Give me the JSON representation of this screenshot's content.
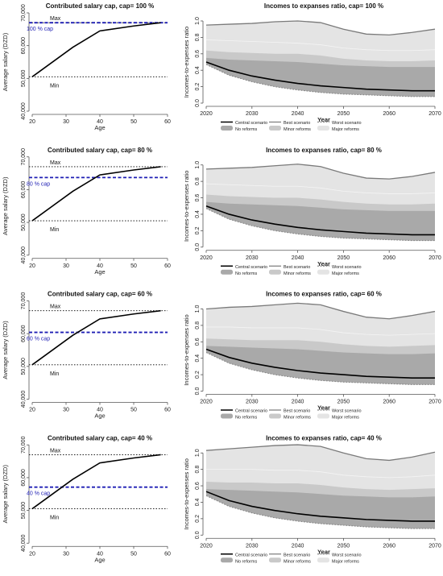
{
  "colors": {
    "cap_line": "#1f1fb4",
    "bound_line": "#000000",
    "curve": "#000000",
    "band_major": "#e4e4e4",
    "band_minor": "#c9c9c9",
    "band_none": "#a9a9a9",
    "best_line": "#7a7a7a",
    "worst_line": "#8a8a8a"
  },
  "chart_data": [
    {
      "type": "line",
      "title": "Contributed salary cap, cap= 100 %",
      "xlabel": "Age",
      "ylabel": "Average salary (DZD)",
      "xlim": [
        20,
        60
      ],
      "ylim": [
        40000,
        70000
      ],
      "xticks": [
        "20",
        "30",
        "40",
        "50",
        "60"
      ],
      "yticks": [
        "40,000",
        "50,000",
        "60,000",
        "70,000"
      ],
      "series": [
        {
          "x": [
            20,
            32,
            40,
            50,
            58
          ],
          "values": [
            50500,
            59500,
            64500,
            66000,
            67000
          ]
        }
      ],
      "max_label": "Max",
      "max_value": 67000,
      "min_label": "Min",
      "min_value": 50500,
      "cap_label": "100 % cap",
      "cap_value": 67000
    },
    {
      "type": "area",
      "title": "Incomes to expanses ratio, cap= 100 %",
      "xlabel": "Year",
      "ylabel": "Incomes-to-expenses ratio",
      "xlim": [
        2020,
        2070
      ],
      "ylim": [
        0,
        1.0
      ],
      "xticks": [
        "2020",
        "2030",
        "2040",
        "2050",
        "2060",
        "2070"
      ],
      "yticks": [
        "0.0",
        "0.2",
        "0.4",
        "0.6",
        "0.8",
        "1.0"
      ],
      "x": [
        2020,
        2025,
        2030,
        2035,
        2040,
        2045,
        2050,
        2055,
        2060,
        2065,
        2070
      ],
      "best": [
        0.95,
        0.96,
        0.97,
        0.99,
        1.0,
        0.98,
        0.9,
        0.84,
        0.83,
        0.86,
        0.9
      ],
      "major_upper": [
        0.77,
        0.76,
        0.75,
        0.74,
        0.73,
        0.71,
        0.67,
        0.65,
        0.64,
        0.64,
        0.65
      ],
      "minor_upper": [
        0.64,
        0.62,
        0.61,
        0.6,
        0.6,
        0.58,
        0.54,
        0.52,
        0.51,
        0.51,
        0.52
      ],
      "none_upper": [
        0.55,
        0.53,
        0.52,
        0.51,
        0.5,
        0.48,
        0.46,
        0.45,
        0.44,
        0.44,
        0.44
      ],
      "central": [
        0.5,
        0.4,
        0.33,
        0.28,
        0.24,
        0.21,
        0.19,
        0.17,
        0.16,
        0.15,
        0.15
      ],
      "worst": [
        0.47,
        0.34,
        0.26,
        0.2,
        0.16,
        0.13,
        0.11,
        0.1,
        0.09,
        0.08,
        0.08
      ],
      "legend": [
        {
          "label": "Central scenario",
          "style": "central"
        },
        {
          "label": "Best scenario",
          "style": "best"
        },
        {
          "label": "Worst scenario",
          "style": "worst"
        },
        {
          "label": "No reforms",
          "style": "band_none"
        },
        {
          "label": "Minor reforms",
          "style": "band_minor"
        },
        {
          "label": "Major reforms",
          "style": "band_major"
        }
      ]
    },
    {
      "type": "line",
      "title": "Contributed salary cap, cap= 80 %",
      "xlabel": "Age",
      "ylabel": "Average salary (DZD)",
      "xlim": [
        20,
        60
      ],
      "ylim": [
        40000,
        70000
      ],
      "xticks": [
        "20",
        "30",
        "40",
        "50",
        "60"
      ],
      "yticks": [
        "40,000",
        "50,000",
        "60,000",
        "70,000"
      ],
      "series": [
        {
          "x": [
            20,
            32,
            40,
            50,
            58
          ],
          "values": [
            50500,
            59500,
            64500,
            66000,
            67000
          ]
        }
      ],
      "max_label": "Max",
      "max_value": 67000,
      "min_label": "Min",
      "min_value": 50500,
      "cap_label": "80 % cap",
      "cap_value": 63700
    },
    {
      "type": "area",
      "title": "Incomes to expanses ratio, cap= 80 %",
      "xlabel": "Year",
      "ylabel": "Incomes-to-expenses ratio",
      "xlim": [
        2020,
        2070
      ],
      "ylim": [
        0,
        1.0
      ],
      "xticks": [
        "2020",
        "2030",
        "2040",
        "2050",
        "2060",
        "2070"
      ],
      "yticks": [
        "0.0",
        "0.2",
        "0.4",
        "0.6",
        "0.8",
        "1.0"
      ],
      "x": [
        2020,
        2025,
        2030,
        2035,
        2040,
        2045,
        2050,
        2055,
        2060,
        2065,
        2070
      ],
      "best": [
        0.95,
        0.96,
        0.97,
        0.99,
        1.01,
        0.98,
        0.9,
        0.84,
        0.83,
        0.86,
        0.91
      ],
      "major_upper": [
        0.77,
        0.76,
        0.75,
        0.74,
        0.74,
        0.72,
        0.68,
        0.66,
        0.65,
        0.65,
        0.66
      ],
      "minor_upper": [
        0.64,
        0.62,
        0.61,
        0.6,
        0.6,
        0.58,
        0.55,
        0.53,
        0.52,
        0.52,
        0.53
      ],
      "none_upper": [
        0.55,
        0.53,
        0.52,
        0.51,
        0.5,
        0.48,
        0.46,
        0.45,
        0.44,
        0.44,
        0.44
      ],
      "central": [
        0.5,
        0.4,
        0.33,
        0.28,
        0.24,
        0.21,
        0.19,
        0.17,
        0.16,
        0.15,
        0.15
      ],
      "worst": [
        0.47,
        0.34,
        0.26,
        0.2,
        0.16,
        0.13,
        0.11,
        0.1,
        0.09,
        0.08,
        0.08
      ],
      "legend": [
        {
          "label": "Central scenario",
          "style": "central"
        },
        {
          "label": "Best scenario",
          "style": "best"
        },
        {
          "label": "Worst scenario",
          "style": "worst"
        },
        {
          "label": "No reforms",
          "style": "band_none"
        },
        {
          "label": "Minor reforms",
          "style": "band_minor"
        },
        {
          "label": "Major reforms",
          "style": "band_major"
        }
      ]
    },
    {
      "type": "line",
      "title": "Contributed salary cap, cap= 60 %",
      "xlabel": "Age",
      "ylabel": "Average salary (DZD)",
      "xlim": [
        20,
        60
      ],
      "ylim": [
        40000,
        70000
      ],
      "xticks": [
        "20",
        "30",
        "40",
        "50",
        "60"
      ],
      "yticks": [
        "40,000",
        "50,000",
        "60,000",
        "70,000"
      ],
      "series": [
        {
          "x": [
            20,
            32,
            40,
            50,
            58
          ],
          "values": [
            50500,
            59500,
            64500,
            66000,
            67000
          ]
        }
      ],
      "max_label": "Max",
      "max_value": 67000,
      "min_label": "Min",
      "min_value": 50500,
      "cap_label": "60 % cap",
      "cap_value": 60400
    },
    {
      "type": "area",
      "title": "Incomes to expanses ratio, cap= 60 %",
      "xlabel": "Year",
      "ylabel": "Incomes-to-expenses ratio",
      "xlim": [
        2020,
        2070
      ],
      "ylim": [
        0,
        1.0
      ],
      "xticks": [
        "2020",
        "2030",
        "2040",
        "2050",
        "2060",
        "2070"
      ],
      "yticks": [
        "0.0",
        "0.2",
        "0.4",
        "0.6",
        "0.8",
        "1.0"
      ],
      "x": [
        2020,
        2025,
        2030,
        2035,
        2040,
        2045,
        2050,
        2055,
        2060,
        2065,
        2070
      ],
      "best": [
        1.0,
        1.02,
        1.03,
        1.05,
        1.07,
        1.05,
        0.97,
        0.9,
        0.88,
        0.92,
        0.97
      ],
      "major_upper": [
        0.78,
        0.78,
        0.77,
        0.77,
        0.77,
        0.75,
        0.71,
        0.69,
        0.68,
        0.69,
        0.7
      ],
      "minor_upper": [
        0.64,
        0.63,
        0.62,
        0.62,
        0.62,
        0.6,
        0.57,
        0.55,
        0.54,
        0.55,
        0.56
      ],
      "none_upper": [
        0.55,
        0.54,
        0.53,
        0.52,
        0.51,
        0.49,
        0.47,
        0.46,
        0.45,
        0.45,
        0.46
      ],
      "central": [
        0.51,
        0.41,
        0.34,
        0.29,
        0.25,
        0.22,
        0.2,
        0.18,
        0.17,
        0.16,
        0.16
      ],
      "worst": [
        0.47,
        0.34,
        0.26,
        0.2,
        0.16,
        0.13,
        0.11,
        0.1,
        0.09,
        0.08,
        0.08
      ],
      "legend": [
        {
          "label": "Central scenario",
          "style": "central"
        },
        {
          "label": "Best scenario",
          "style": "best"
        },
        {
          "label": "Worst scenario",
          "style": "worst"
        },
        {
          "label": "No reforms",
          "style": "band_none"
        },
        {
          "label": "Minor reforms",
          "style": "band_minor"
        },
        {
          "label": "Major reforms",
          "style": "band_major"
        }
      ]
    },
    {
      "type": "line",
      "title": "Contributed salary cap, cap= 40 %",
      "xlabel": "Age",
      "ylabel": "Average salary (DZD)",
      "xlim": [
        20,
        60
      ],
      "ylim": [
        40000,
        70000
      ],
      "xticks": [
        "20",
        "30",
        "40",
        "50",
        "60"
      ],
      "yticks": [
        "40,000",
        "50,000",
        "60,000",
        "70,000"
      ],
      "series": [
        {
          "x": [
            20,
            32,
            40,
            50,
            58
          ],
          "values": [
            50500,
            59500,
            64500,
            66000,
            67000
          ]
        }
      ],
      "max_label": "Max",
      "max_value": 67000,
      "min_label": "Min",
      "min_value": 50500,
      "cap_label": "40 % cap",
      "cap_value": 57100
    },
    {
      "type": "area",
      "title": "Incomes to expanses ratio, cap= 40 %",
      "xlabel": "Year",
      "ylabel": "Incomes-to-expenses ratio",
      "xlim": [
        2020,
        2070
      ],
      "ylim": [
        0,
        1.0
      ],
      "xticks": [
        "2020",
        "2030",
        "2040",
        "2050",
        "2060",
        "2070"
      ],
      "yticks": [
        "0.0",
        "0.2",
        "0.4",
        "0.6",
        "0.8",
        "1.0"
      ],
      "x": [
        2020,
        2025,
        2030,
        2035,
        2040,
        2045,
        2050,
        2055,
        2060,
        2065,
        2070
      ],
      "best": [
        1.03,
        1.05,
        1.07,
        1.09,
        1.1,
        1.08,
        1.0,
        0.93,
        0.91,
        0.95,
        1.01
      ],
      "major_upper": [
        0.8,
        0.8,
        0.8,
        0.79,
        0.79,
        0.77,
        0.73,
        0.71,
        0.7,
        0.71,
        0.73
      ],
      "minor_upper": [
        0.65,
        0.64,
        0.64,
        0.63,
        0.63,
        0.61,
        0.58,
        0.56,
        0.55,
        0.56,
        0.57
      ],
      "none_upper": [
        0.56,
        0.55,
        0.54,
        0.53,
        0.52,
        0.5,
        0.48,
        0.47,
        0.46,
        0.46,
        0.47
      ],
      "central": [
        0.53,
        0.42,
        0.35,
        0.3,
        0.26,
        0.23,
        0.21,
        0.19,
        0.18,
        0.17,
        0.17
      ],
      "worst": [
        0.48,
        0.35,
        0.27,
        0.21,
        0.17,
        0.14,
        0.12,
        0.1,
        0.09,
        0.08,
        0.08
      ],
      "legend": [
        {
          "label": "Central scenario",
          "style": "central"
        },
        {
          "label": "Best scenario",
          "style": "best"
        },
        {
          "label": "Worst scenario",
          "style": "worst"
        },
        {
          "label": "No reforms",
          "style": "band_none"
        },
        {
          "label": "Minor reforms",
          "style": "band_minor"
        },
        {
          "label": "Major reforms",
          "style": "band_major"
        }
      ]
    }
  ]
}
